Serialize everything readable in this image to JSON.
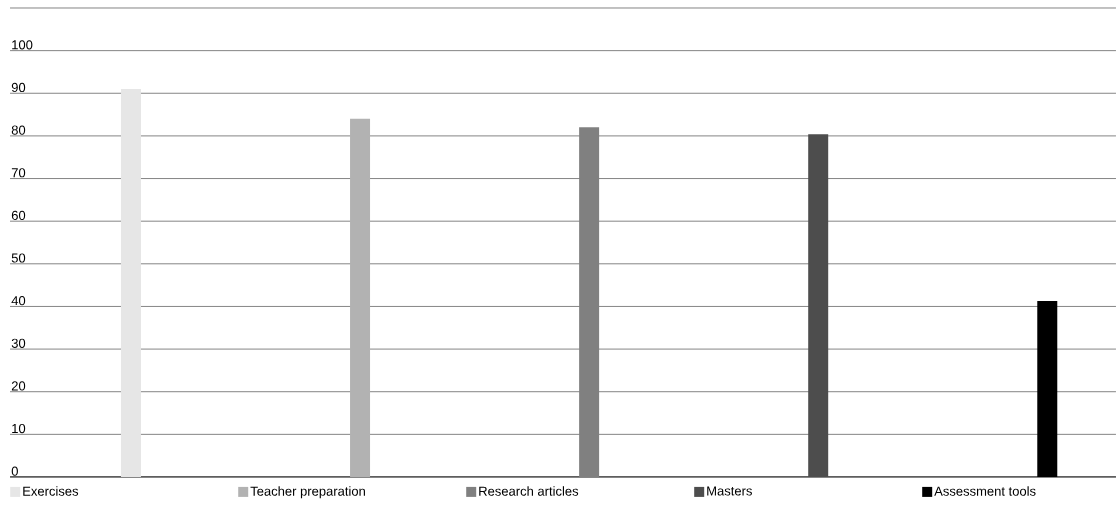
{
  "chart_data": {
    "type": "bar",
    "categories": [
      null,
      null,
      null,
      null,
      null
    ],
    "series": [
      {
        "name": "Exercises",
        "color": "#e6e6e6",
        "values": [
          91,
          null,
          null,
          null,
          null
        ]
      },
      {
        "name": "Teacher preparation",
        "color": "#b2b2b2",
        "values": [
          null,
          84,
          null,
          null,
          null
        ]
      },
      {
        "name": "Research articles",
        "color": "#808080",
        "values": [
          null,
          null,
          82,
          null,
          null
        ]
      },
      {
        "name": "Masters",
        "color": "#4d4d4d",
        "values": [
          null,
          null,
          null,
          80.4,
          null
        ]
      },
      {
        "name": "Assessment tools",
        "color": "#000000",
        "values": [
          null,
          null,
          null,
          null,
          41.3
        ]
      }
    ],
    "ylim": [
      0,
      110
    ],
    "yticks": [
      0,
      10,
      20,
      30,
      40,
      50,
      60,
      70,
      80,
      90,
      100,
      {
        "value": 110,
        "label": null
      }
    ],
    "grid": "y",
    "legend": "bottom"
  }
}
